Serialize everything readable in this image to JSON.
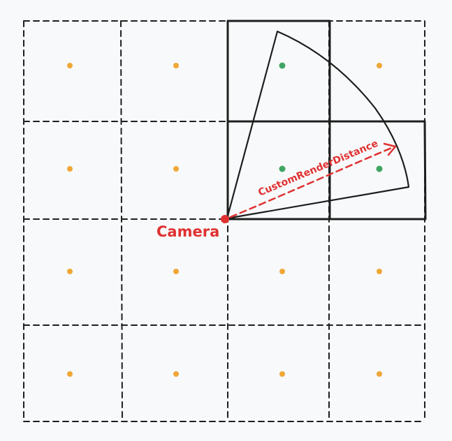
{
  "colors": {
    "background": "#f8f9fa",
    "grid": "#1e1e1e",
    "culled_point": "#f0a737",
    "visible_point": "#40a663",
    "camera": "#e03131",
    "annotation": "#e03131"
  },
  "grid": {
    "rows": 4,
    "cols": 4,
    "active_cells": [
      {
        "row": 0,
        "col": 2
      },
      {
        "row": 1,
        "col": 2
      },
      {
        "row": 1,
        "col": 3
      }
    ]
  },
  "points": [
    {
      "row": 0,
      "col": 0,
      "state": "culled"
    },
    {
      "row": 0,
      "col": 1,
      "state": "culled"
    },
    {
      "row": 0,
      "col": 2,
      "state": "visible"
    },
    {
      "row": 0,
      "col": 3,
      "state": "culled"
    },
    {
      "row": 1,
      "col": 0,
      "state": "culled"
    },
    {
      "row": 1,
      "col": 1,
      "state": "culled"
    },
    {
      "row": 1,
      "col": 2,
      "state": "visible"
    },
    {
      "row": 1,
      "col": 3,
      "state": "visible"
    },
    {
      "row": 2,
      "col": 0,
      "state": "culled"
    },
    {
      "row": 2,
      "col": 1,
      "state": "culled"
    },
    {
      "row": 2,
      "col": 2,
      "state": "culled"
    },
    {
      "row": 2,
      "col": 3,
      "state": "culled"
    },
    {
      "row": 3,
      "col": 0,
      "state": "culled"
    },
    {
      "row": 3,
      "col": 1,
      "state": "culled"
    },
    {
      "row": 3,
      "col": 2,
      "state": "culled"
    },
    {
      "row": 3,
      "col": 3,
      "state": "culled"
    }
  ],
  "labels": {
    "camera": "Camera",
    "distance": "CustomRenderDistance"
  }
}
